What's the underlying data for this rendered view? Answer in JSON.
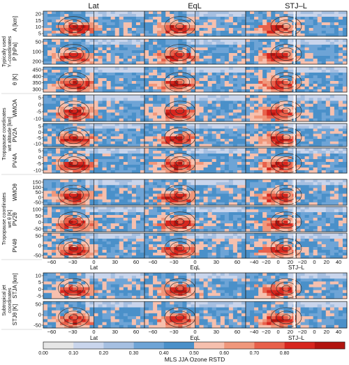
{
  "chart_data": {
    "type": "heatmap",
    "title": "",
    "column_titles": [
      "Lat",
      "EqL",
      "STJ–L"
    ],
    "group_labels": [
      {
        "lines": [
          "Typically used",
          "Y–coordinates"
        ]
      },
      {
        "lines": [
          "Tropopause coordinates",
          "wrt altitude [km]"
        ]
      },
      {
        "lines": [
          "Tropopause coordinates",
          "wrt θ [K]"
        ]
      },
      {
        "lines": [
          "Subtropical jet",
          "coordinates"
        ]
      }
    ],
    "rows": [
      {
        "ylabel": "A [km]",
        "yticks": [
          "20",
          "15",
          "10",
          "5"
        ]
      },
      {
        "ylabel": "P [hPa]",
        "yticks": [
          "50",
          "100",
          "200"
        ]
      },
      {
        "ylabel": "θ [K]",
        "yticks": [
          "450",
          "400",
          "350",
          "300"
        ]
      },
      {
        "ylabel": "WMOA",
        "yticks": [
          "5",
          "0",
          "-5",
          "-10"
        ]
      },
      {
        "ylabel": "PV2A",
        "yticks": [
          "5",
          "0",
          "-5",
          "-10"
        ]
      },
      {
        "ylabel": "PV4A",
        "yticks": [
          "5",
          "0",
          "-5",
          "-10"
        ]
      },
      {
        "ylabel": "WMOθ",
        "yticks": [
          "150",
          "100",
          "50",
          "0",
          "-50"
        ]
      },
      {
        "ylabel": "PV2θ",
        "yticks": [
          "100",
          "50",
          "0",
          "-50"
        ]
      },
      {
        "ylabel": "PV4θ",
        "yticks": [
          "50",
          "0",
          "-50"
        ]
      },
      {
        "ylabel": "STJA [km]",
        "yticks": [
          "10",
          "5",
          "0",
          "-5"
        ]
      },
      {
        "ylabel": "STJθ [K]",
        "yticks": [
          "50",
          "0",
          "-50"
        ]
      }
    ],
    "xaxes": [
      {
        "xlabel": "Lat",
        "xticks": [
          "−60",
          "−30",
          "0",
          "30",
          "60"
        ]
      },
      {
        "xlabel": "EqL",
        "xticks": [
          "−60",
          "−30",
          "0",
          "30",
          "60"
        ]
      },
      {
        "xlabel": "STJ–L",
        "xticks": [
          "−40",
          "−20",
          "0",
          "20",
          "−20",
          "0",
          "20",
          "40"
        ]
      }
    ],
    "colorbar": {
      "label": "MLS JJA Ozone RSTD",
      "bounds": [
        "0.00",
        "0.10",
        "0.20",
        "0.30",
        "0.40",
        "0.50",
        "0.60",
        "0.70",
        "0.80"
      ],
      "colors": [
        "#e6e6e6",
        "#c9d5ec",
        "#a5bfe1",
        "#6ea4d6",
        "#4a90c9",
        "#f6c0ae",
        "#f0977b",
        "#e8604a",
        "#d7261e",
        "#b2140f"
      ]
    }
  }
}
